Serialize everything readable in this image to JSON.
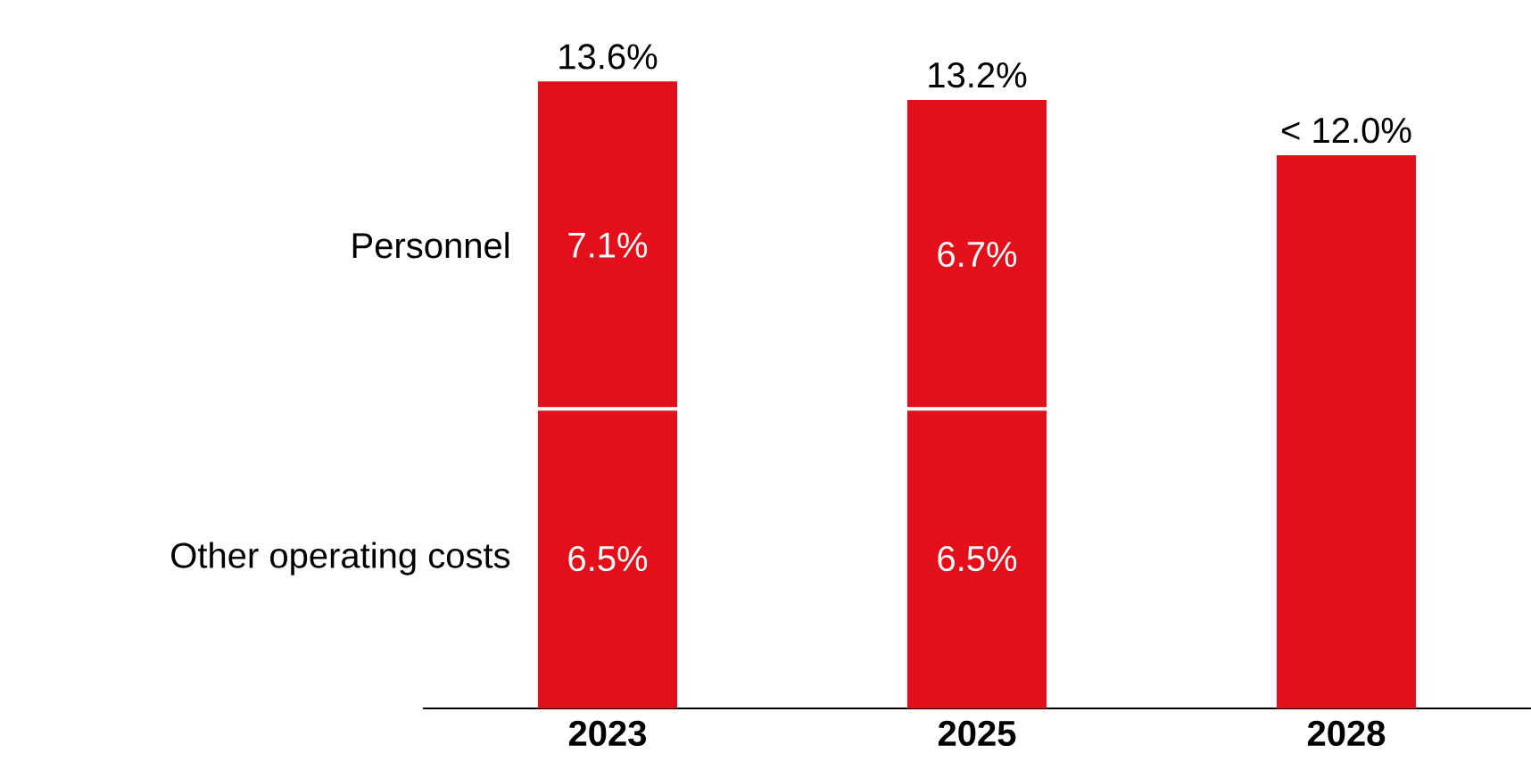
{
  "chart_data": {
    "type": "bar",
    "stacked": true,
    "categories": [
      "2023",
      "2025",
      "2028"
    ],
    "series": [
      {
        "name": "Other operating costs",
        "color": "#e3101b",
        "values": [
          6.5,
          6.5,
          null
        ],
        "value_labels": [
          "6.5%",
          "6.5%",
          null
        ]
      },
      {
        "name": "Personnel",
        "color": "#e3101b",
        "values": [
          7.1,
          6.7,
          null
        ],
        "value_labels": [
          "7.1%",
          "6.7%",
          null
        ]
      },
      {
        "color": "#e3101b",
        "values": [
          null,
          null,
          12.0
        ]
      }
    ],
    "totals": [
      "13.6%",
      "13.2%",
      "< 12.0%"
    ],
    "tick_labels": "x",
    "legend": false
  }
}
